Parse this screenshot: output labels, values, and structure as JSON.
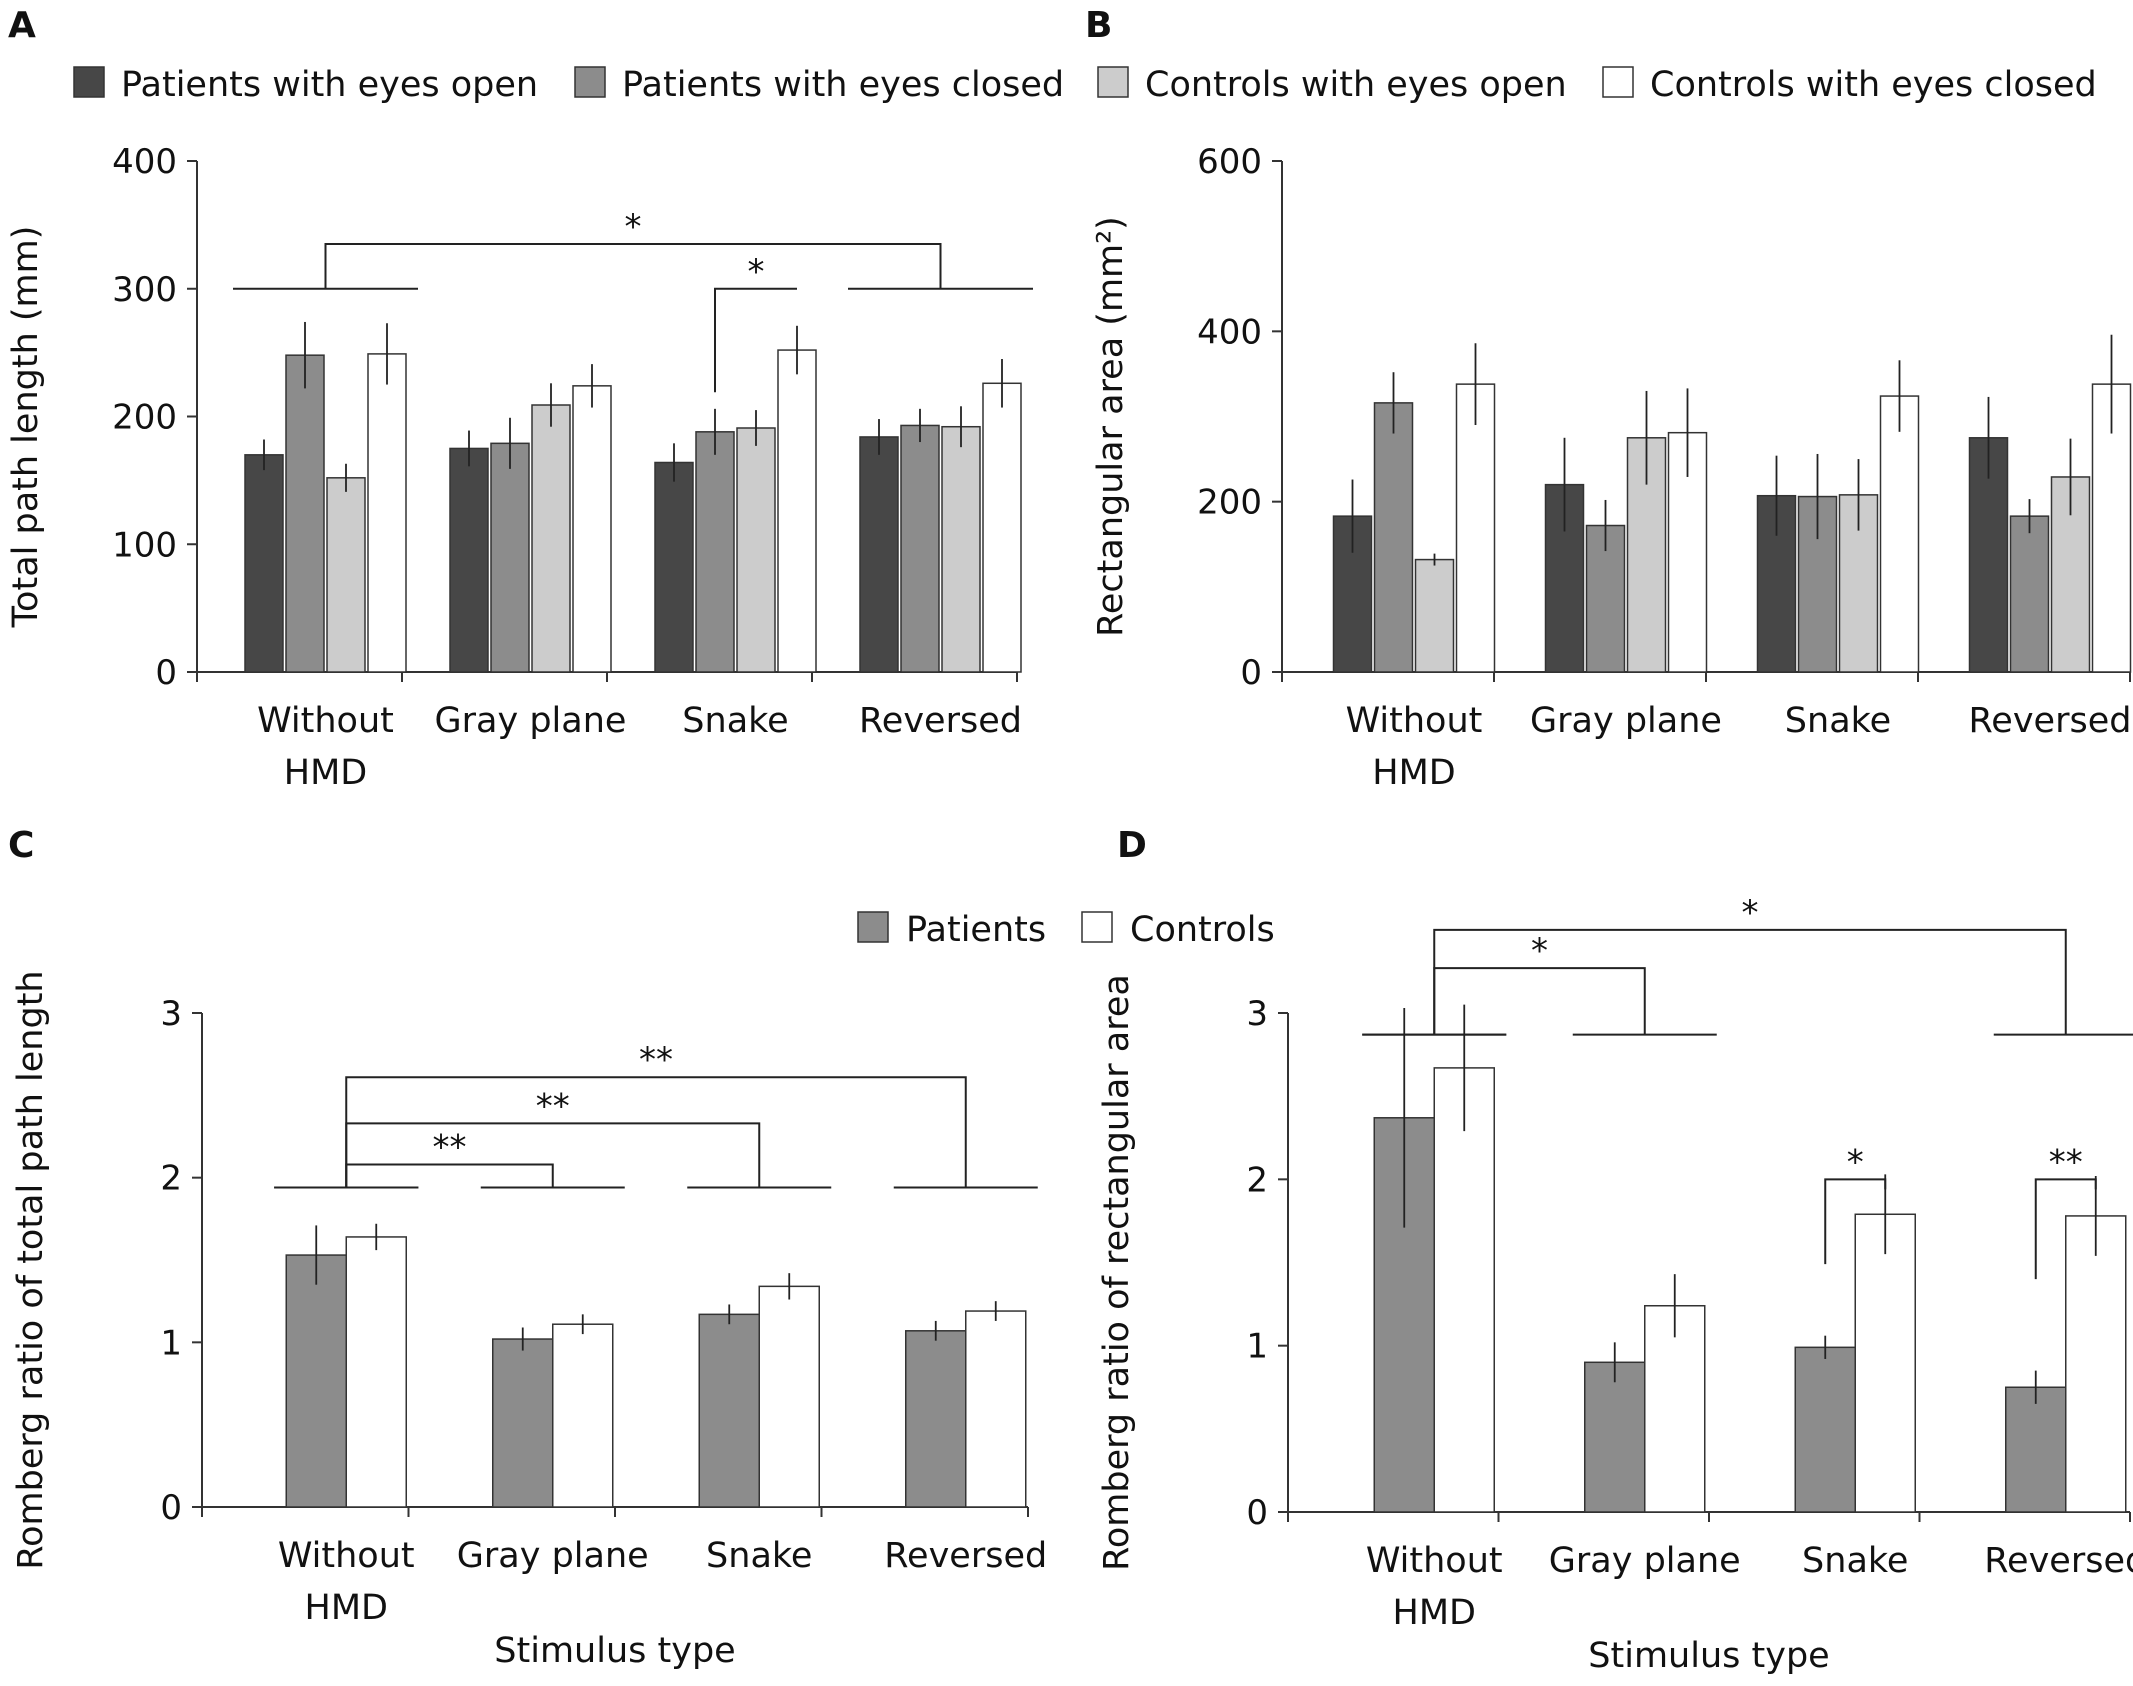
{
  "colors": {
    "patients_open": "#474747",
    "patients_closed": "#8c8c8c",
    "controls_open": "#cccccc",
    "controls_closed": "#ffffff",
    "patients": "#8c8c8c",
    "controls": "#ffffff",
    "axis": "#333333"
  },
  "legend_top": [
    {
      "label": "Patients with eyes open",
      "color_key": "patients_open"
    },
    {
      "label": "Patients with eyes closed",
      "color_key": "patients_closed"
    },
    {
      "label": "Controls with eyes open",
      "color_key": "controls_open"
    },
    {
      "label": "Controls with eyes closed",
      "color_key": "controls_closed"
    }
  ],
  "legend_bottom": [
    {
      "label": "Patients",
      "color_key": "patients"
    },
    {
      "label": "Controls",
      "color_key": "controls"
    }
  ],
  "chart_data": [
    {
      "panel": "A",
      "type": "bar",
      "ylabel": "Total path length (mm)",
      "xlabel": "",
      "ylim": [
        0,
        400
      ],
      "yticks": [
        0,
        100,
        200,
        300,
        400
      ],
      "categories": [
        [
          "Without",
          "HMD"
        ],
        [
          "Gray plane"
        ],
        [
          "Snake"
        ],
        [
          "Reversed"
        ]
      ],
      "series": [
        {
          "name": "Patients with eyes open",
          "color_key": "patients_open",
          "values": [
            170,
            175,
            164,
            184
          ],
          "errors": [
            12,
            14,
            15,
            14
          ]
        },
        {
          "name": "Patients with eyes closed",
          "color_key": "patients_closed",
          "values": [
            248,
            179,
            188,
            193
          ],
          "errors": [
            26,
            20,
            18,
            13
          ]
        },
        {
          "name": "Controls with eyes open",
          "color_key": "controls_open",
          "values": [
            152,
            209,
            191,
            192
          ],
          "errors": [
            11,
            17,
            14,
            16
          ]
        },
        {
          "name": "Controls with eyes closed",
          "color_key": "controls_closed",
          "values": [
            249,
            224,
            252,
            226
          ],
          "errors": [
            24,
            17,
            19,
            19
          ]
        }
      ],
      "significance": [
        {
          "type": "groups",
          "label": "*",
          "from_group": 0,
          "to_group": 3,
          "y": 300,
          "level": 335
        },
        {
          "type": "bars",
          "label": "*",
          "group": 2,
          "from_series": 1,
          "to_series": 3,
          "start": 219,
          "end": 300,
          "level": 300
        }
      ]
    },
    {
      "panel": "B",
      "type": "bar",
      "ylabel": "Rectangular area (mm²)",
      "xlabel": "",
      "ylim": [
        0,
        600
      ],
      "yticks": [
        0,
        200,
        400,
        600
      ],
      "categories": [
        [
          "Without",
          "HMD"
        ],
        [
          "Gray plane"
        ],
        [
          "Snake"
        ],
        [
          "Reversed"
        ]
      ],
      "series": [
        {
          "name": "Patients with eyes open",
          "color_key": "patients_open",
          "values": [
            183,
            220,
            207,
            275
          ],
          "errors": [
            43,
            55,
            47,
            48
          ]
        },
        {
          "name": "Patients with eyes closed",
          "color_key": "patients_closed",
          "values": [
            316,
            172,
            206,
            183
          ],
          "errors": [
            36,
            30,
            50,
            20
          ]
        },
        {
          "name": "Controls with eyes open",
          "color_key": "controls_open",
          "values": [
            132,
            275,
            208,
            229
          ],
          "errors": [
            7,
            55,
            42,
            45
          ]
        },
        {
          "name": "Controls with eyes closed",
          "color_key": "controls_closed",
          "values": [
            338,
            281,
            324,
            338
          ],
          "errors": [
            48,
            52,
            42,
            58
          ]
        }
      ],
      "significance": []
    },
    {
      "panel": "C",
      "type": "bar",
      "ylabel": "Romberg ratio of total path length",
      "xlabel": "Stimulus type",
      "ylim": [
        0,
        3
      ],
      "yticks": [
        0,
        1,
        2,
        3
      ],
      "categories": [
        [
          "Without",
          "HMD"
        ],
        [
          "Gray plane"
        ],
        [
          "Snake"
        ],
        [
          "Reversed"
        ]
      ],
      "series": [
        {
          "name": "Patients",
          "color_key": "patients",
          "values": [
            1.53,
            1.02,
            1.17,
            1.07
          ],
          "errors": [
            0.18,
            0.07,
            0.06,
            0.06
          ]
        },
        {
          "name": "Controls",
          "color_key": "controls",
          "values": [
            1.64,
            1.11,
            1.34,
            1.19
          ],
          "errors": [
            0.08,
            0.06,
            0.08,
            0.06
          ]
        }
      ],
      "significance": [
        {
          "type": "groups",
          "label": "**",
          "from_group": 0,
          "to_group": 3,
          "y": 1.94,
          "level": 2.61
        },
        {
          "type": "groups",
          "label": "**",
          "from_group": 0,
          "to_group": 2,
          "y": 1.94,
          "level": 2.33
        },
        {
          "type": "groups",
          "label": "**",
          "from_group": 0,
          "to_group": 1,
          "y": 1.94,
          "level": 2.08
        }
      ]
    },
    {
      "panel": "D",
      "type": "bar",
      "ylabel": "Romberg ratio of rectangular area",
      "xlabel": "Stimulus type",
      "ylim": [
        0,
        3
      ],
      "yticks": [
        0,
        1,
        2,
        3
      ],
      "categories": [
        [
          "Without",
          "HMD"
        ],
        [
          "Gray plane"
        ],
        [
          "Snake"
        ],
        [
          "Reversed"
        ]
      ],
      "series": [
        {
          "name": "Patients",
          "color_key": "patients",
          "values": [
            2.37,
            0.9,
            0.99,
            0.75
          ],
          "errors": [
            0.66,
            0.12,
            0.07,
            0.1
          ]
        },
        {
          "name": "Controls",
          "color_key": "controls",
          "values": [
            2.67,
            1.24,
            1.79,
            1.78
          ],
          "errors": [
            0.38,
            0.19,
            0.24,
            0.24
          ]
        }
      ],
      "significance": [
        {
          "type": "groups",
          "label": "*",
          "from_group": 0,
          "to_group": 3,
          "y": 2.87,
          "level": 3.5
        },
        {
          "type": "groups",
          "label": "*",
          "from_group": 0,
          "to_group": 1,
          "y": 2.87,
          "level": 3.27
        },
        {
          "type": "bars",
          "label": "*",
          "group": 2,
          "from_series": 0,
          "to_series": 1,
          "start": 1.49,
          "end": 1.94,
          "level": 2.0
        },
        {
          "type": "bars",
          "label": "**",
          "group": 3,
          "from_series": 0,
          "to_series": 1,
          "start": 1.4,
          "end": 1.94,
          "level": 2.0
        }
      ]
    }
  ]
}
